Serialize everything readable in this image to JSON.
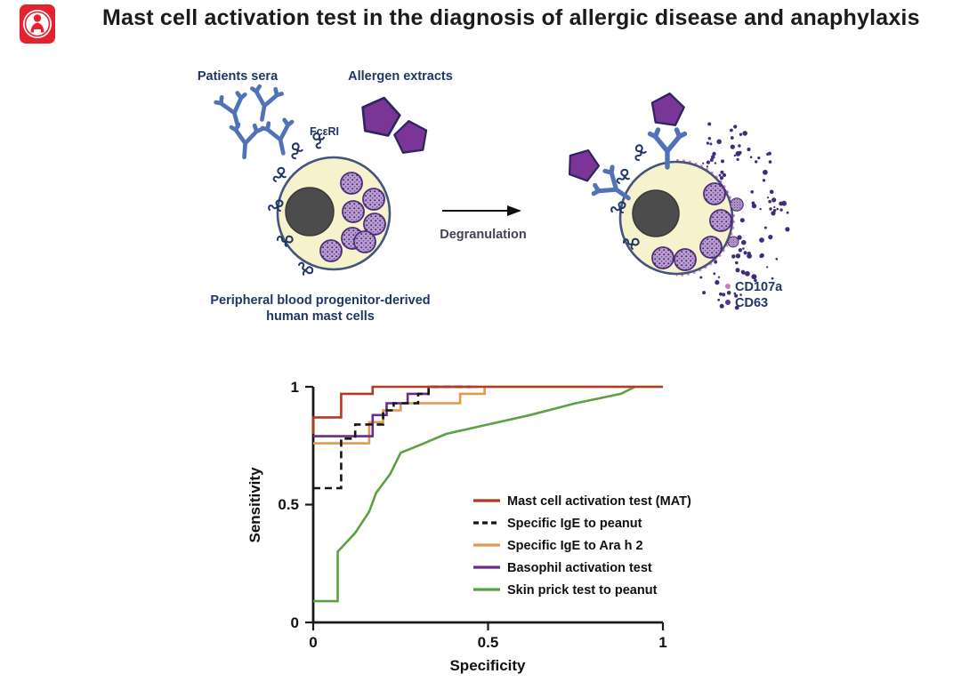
{
  "header": {
    "title": "Mast cell activation test in the diagnosis of allergic disease and anaphylaxis",
    "logo": "person-icon"
  },
  "theme": {
    "navy": "#1f3666",
    "antibody": "#5272b8",
    "allergen": "#7a3597",
    "allergenEdge": "#2c2560",
    "cellFill": "#f6f2cc",
    "cellEdge": "#44537f",
    "nucleus": "#4c4c4c",
    "granFill": "#c29bd5",
    "granEdge": "#4c2878",
    "degran": "#3f2d7c",
    "pink": "#e583bb",
    "cd107a": "#c77fc0",
    "cd63": "#5a3694",
    "logoRed": "#e42230"
  },
  "diagram": {
    "labels": {
      "patients_sera": "Patients sera",
      "allergen_extracts": "Allergen extracts",
      "fceri": "FcεRI",
      "degranulation": "Degranulation",
      "cell_caption_line1": "Peripheral blood progenitor-derived",
      "cell_caption_line2": "human mast cells",
      "cd107a": "CD107a",
      "cd63": "CD63"
    }
  },
  "chart_data": {
    "type": "line",
    "subtype": "roc-curves",
    "title": "",
    "xlabel": "Specificity",
    "ylabel": "Sensitivity",
    "xlim": [
      0,
      1
    ],
    "ylim": [
      0,
      1
    ],
    "xticks": [
      0,
      0.5,
      1
    ],
    "yticks": [
      0,
      0.5,
      1
    ],
    "xtick_labels": [
      "0",
      "0.5",
      "1"
    ],
    "ytick_labels": [
      "0",
      "0.5",
      "1"
    ],
    "grid": false,
    "legend_position": "inside lower right",
    "series": [
      {
        "name": "Mast cell activation test (MAT)",
        "color": "#b23a1e",
        "dash": "solid",
        "points": [
          [
            0,
            0.8
          ],
          [
            0,
            0.87
          ],
          [
            0.08,
            0.87
          ],
          [
            0.08,
            0.97
          ],
          [
            0.17,
            0.97
          ],
          [
            0.17,
            1.0
          ],
          [
            1.0,
            1.0
          ]
        ]
      },
      {
        "name": "Specific IgE to peanut",
        "color": "#151515",
        "dash": "dashed",
        "points": [
          [
            0,
            0.57
          ],
          [
            0.08,
            0.57
          ],
          [
            0.08,
            0.78
          ],
          [
            0.12,
            0.78
          ],
          [
            0.12,
            0.84
          ],
          [
            0.2,
            0.84
          ],
          [
            0.2,
            0.9
          ],
          [
            0.23,
            0.9
          ],
          [
            0.23,
            0.93
          ],
          [
            0.3,
            0.93
          ],
          [
            0.3,
            0.97
          ],
          [
            0.33,
            0.97
          ],
          [
            0.33,
            1.0
          ],
          [
            0.45,
            1.0
          ]
        ]
      },
      {
        "name": "Specific IgE to Ara h 2",
        "color": "#e09a50",
        "dash": "solid",
        "points": [
          [
            0,
            0.76
          ],
          [
            0.16,
            0.76
          ],
          [
            0.16,
            0.85
          ],
          [
            0.2,
            0.85
          ],
          [
            0.2,
            0.9
          ],
          [
            0.25,
            0.9
          ],
          [
            0.25,
            0.93
          ],
          [
            0.42,
            0.93
          ],
          [
            0.42,
            0.97
          ],
          [
            0.49,
            0.97
          ],
          [
            0.49,
            1.0
          ],
          [
            1.0,
            1.0
          ]
        ]
      },
      {
        "name": "Basophil activation test",
        "color": "#6a2c86",
        "dash": "solid",
        "points": [
          [
            0,
            0.79
          ],
          [
            0.17,
            0.79
          ],
          [
            0.17,
            0.88
          ],
          [
            0.21,
            0.88
          ],
          [
            0.21,
            0.93
          ],
          [
            0.27,
            0.93
          ],
          [
            0.27,
            0.97
          ],
          [
            0.33,
            0.97
          ],
          [
            0.33,
            1.0
          ],
          [
            0.47,
            1.0
          ]
        ]
      },
      {
        "name": "Skin prick test to peanut",
        "color": "#5ba143",
        "dash": "solid",
        "points": [
          [
            0,
            0.09
          ],
          [
            0.07,
            0.09
          ],
          [
            0.07,
            0.3
          ],
          [
            0.12,
            0.38
          ],
          [
            0.16,
            0.47
          ],
          [
            0.18,
            0.55
          ],
          [
            0.22,
            0.63
          ],
          [
            0.25,
            0.72
          ],
          [
            0.3,
            0.75
          ],
          [
            0.38,
            0.8
          ],
          [
            0.5,
            0.84
          ],
          [
            0.62,
            0.88
          ],
          [
            0.75,
            0.93
          ],
          [
            0.88,
            0.97
          ],
          [
            0.92,
            1.0
          ]
        ]
      }
    ]
  }
}
